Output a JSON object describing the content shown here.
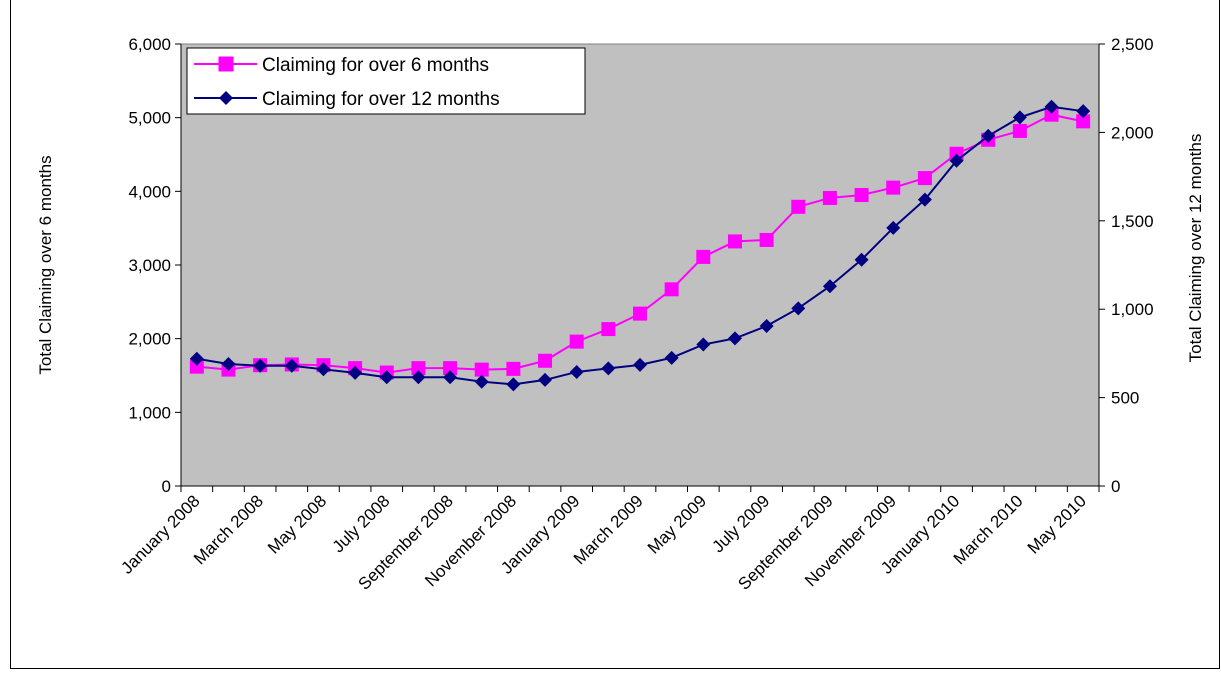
{
  "chart_data": {
    "type": "line",
    "title": "",
    "ylabel_left": "Total Claiming over 6 months",
    "ylabel_right": "Total Claiming over 12 months",
    "ylim_left": [
      0,
      6000
    ],
    "ylim_right": [
      0,
      2500
    ],
    "yticks_left": [
      "0",
      "1,000",
      "2,000",
      "3,000",
      "4,000",
      "5,000",
      "6,000"
    ],
    "yticks_right": [
      "0",
      "500",
      "1,000",
      "1,500",
      "2,000",
      "2,500"
    ],
    "x": [
      "January 2008",
      "February 2008",
      "March 2008",
      "April 2008",
      "May 2008",
      "June 2008",
      "July 2008",
      "August 2008",
      "September 2008",
      "October 2008",
      "November 2008",
      "December 2008",
      "January 2009",
      "February 2009",
      "March 2009",
      "April 2009",
      "May 2009",
      "June 2009",
      "July 2009",
      "August 2009",
      "September 2009",
      "October 2009",
      "November 2009",
      "December 2009",
      "January 2010",
      "February 2010",
      "March 2010",
      "April 2010",
      "May 2010"
    ],
    "x_tick_labels": [
      "January 2008",
      "March 2008",
      "May 2008",
      "July 2008",
      "September 2008",
      "November 2008",
      "January 2009",
      "March 2009",
      "May 2009",
      "July 2009",
      "September 2009",
      "November 2009",
      "January 2010",
      "March 2010",
      "May 2010"
    ],
    "legend_position": "top-left",
    "plot_background": "#c0c0c0",
    "series": [
      {
        "name": "Claiming for over 6 months",
        "axis": "left",
        "color": "#ff00ff",
        "marker": "square",
        "values": [
          1620,
          1580,
          1640,
          1650,
          1640,
          1600,
          1540,
          1600,
          1600,
          1580,
          1590,
          1700,
          1960,
          2130,
          2340,
          2670,
          3110,
          3320,
          3340,
          3790,
          3910,
          3950,
          4050,
          4180,
          4510,
          4700,
          4820,
          5040,
          4950
        ]
      },
      {
        "name": "Claiming for over 12 months",
        "axis": "right",
        "color": "#000080",
        "marker": "diamond",
        "values": [
          720,
          690,
          680,
          680,
          660,
          640,
          615,
          615,
          615,
          590,
          575,
          600,
          645,
          665,
          685,
          725,
          800,
          835,
          905,
          1005,
          1130,
          1280,
          1460,
          1620,
          1840,
          1980,
          2085,
          2145,
          2120
        ]
      }
    ]
  }
}
